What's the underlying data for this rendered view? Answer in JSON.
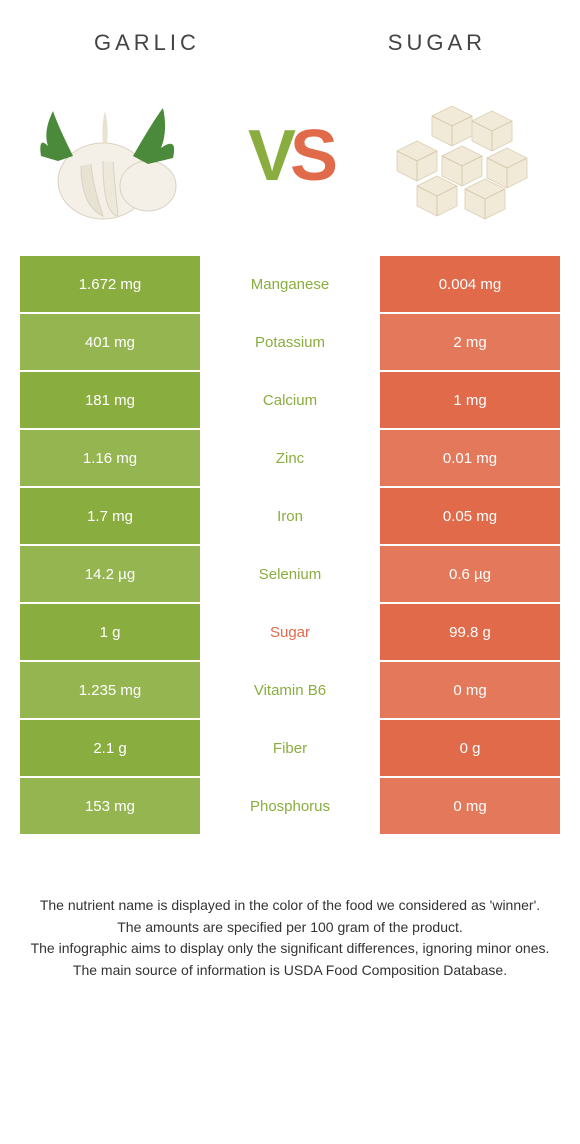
{
  "food_left": {
    "name": "Garlic",
    "color": "#8aad3f"
  },
  "food_right": {
    "name": "Sugar",
    "color": "#e06a4a"
  },
  "row_colors": {
    "left_odd": "#8aad3f",
    "left_even": "#95b551",
    "right_odd": "#e06a4a",
    "right_even": "#e3785b"
  },
  "rows": [
    {
      "left": "1.672 mg",
      "label": "Manganese",
      "right": "0.004 mg",
      "winner": "left"
    },
    {
      "left": "401 mg",
      "label": "Potassium",
      "right": "2 mg",
      "winner": "left"
    },
    {
      "left": "181 mg",
      "label": "Calcium",
      "right": "1 mg",
      "winner": "left"
    },
    {
      "left": "1.16 mg",
      "label": "Zinc",
      "right": "0.01 mg",
      "winner": "left"
    },
    {
      "left": "1.7 mg",
      "label": "Iron",
      "right": "0.05 mg",
      "winner": "left"
    },
    {
      "left": "14.2 µg",
      "label": "Selenium",
      "right": "0.6 µg",
      "winner": "left"
    },
    {
      "left": "1 g",
      "label": "Sugar",
      "right": "99.8 g",
      "winner": "right"
    },
    {
      "left": "1.235 mg",
      "label": "Vitamin B6",
      "right": "0 mg",
      "winner": "left"
    },
    {
      "left": "2.1 g",
      "label": "Fiber",
      "right": "0 g",
      "winner": "left"
    },
    {
      "left": "153 mg",
      "label": "Phosphorus",
      "right": "0 mg",
      "winner": "left"
    }
  ],
  "footnotes": [
    "The nutrient name is displayed in the color of the food we considered as 'winner'.",
    "The amounts are specified per 100 gram of the product.",
    "The infographic aims to display only the significant differences, ignoring minor ones.",
    "The main source of information is USDA Food Composition Database."
  ]
}
